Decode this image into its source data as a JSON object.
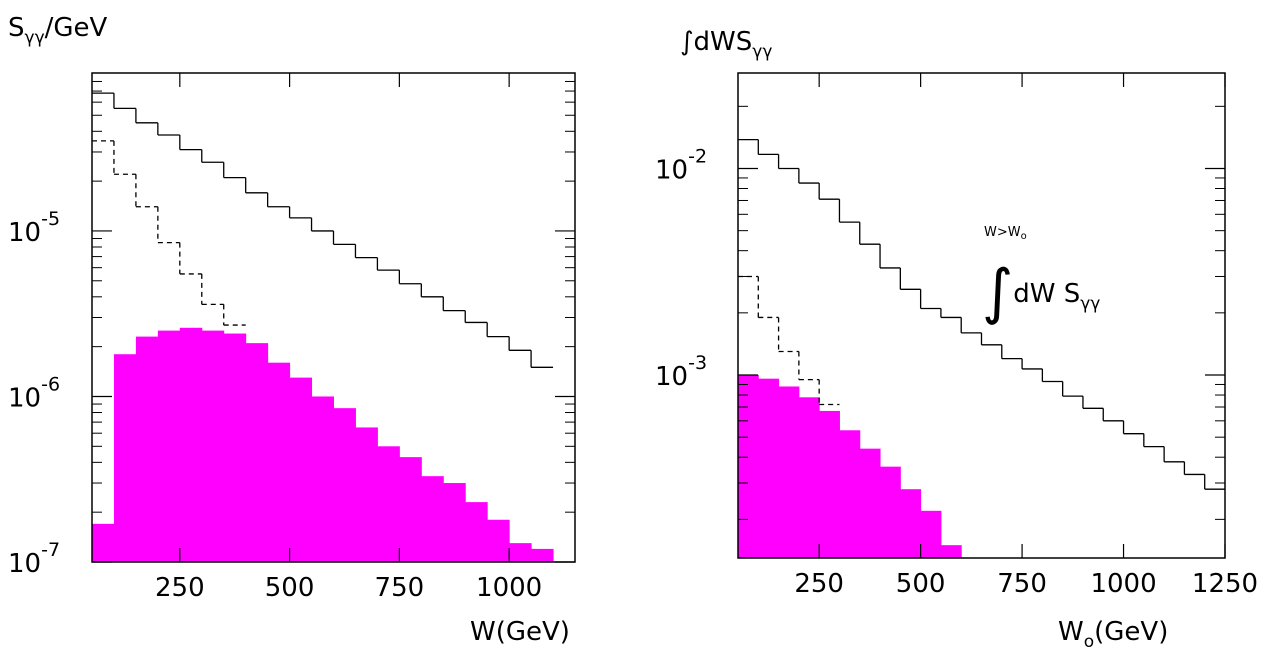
{
  "chart_data": [
    {
      "type": "histogram",
      "title": [
        "S",
        "γγ",
        "/GeV"
      ],
      "xlabel": [
        "W(GeV)"
      ],
      "xscale": "linear",
      "yscale": "log",
      "xlim": [
        50,
        1150
      ],
      "ylim": [
        1e-07,
        9e-05
      ],
      "xticks": [
        250,
        500,
        750,
        1000
      ],
      "yticks": [
        {
          "value": 1e-07,
          "label": "10",
          "exponent": "-7"
        },
        {
          "value": 1e-06,
          "label": "10",
          "exponent": "-6"
        },
        {
          "value": 1e-05,
          "label": "10",
          "exponent": "-5"
        }
      ],
      "yminor": [
        2e-07,
        3e-07,
        4e-07,
        5e-07,
        6e-07,
        7e-07,
        8e-07,
        9e-07,
        2e-06,
        3e-06,
        4e-06,
        5e-06,
        6e-06,
        7e-06,
        8e-06,
        9e-06,
        2e-05,
        3e-05,
        4e-05,
        5e-05,
        6e-05,
        7e-05,
        8e-05,
        9e-05
      ],
      "bins": [
        50,
        100,
        150,
        200,
        250,
        300,
        350,
        400,
        450,
        500,
        550,
        600,
        650,
        700,
        750,
        800,
        850,
        900,
        950,
        1000,
        1050,
        1100
      ],
      "series": [
        {
          "style": "filled",
          "color": "#ff00ff",
          "values": [
            1.7e-07,
            1.8e-06,
            2.3e-06,
            2.5e-06,
            2.6e-06,
            2.5e-06,
            2.4e-06,
            2.1e-06,
            1.6e-06,
            1.3e-06,
            1e-06,
            8.5e-07,
            6.5e-07,
            5e-07,
            4.3e-07,
            3.3e-07,
            3e-07,
            2.3e-07,
            1.8e-07,
            1.3e-07,
            1.2e-07
          ]
        },
        {
          "style": "dashed",
          "color": "#000000",
          "values": [
            3.5e-05,
            2.2e-05,
            1.4e-05,
            8.5e-06,
            5.5e-06,
            3.6e-06,
            2.7e-06,
            null,
            null,
            null,
            null,
            null,
            null,
            null,
            null,
            null,
            null,
            null,
            null,
            null,
            null
          ]
        },
        {
          "style": "solid",
          "color": "#000000",
          "values": [
            6.8e-05,
            5.5e-05,
            4.5e-05,
            3.8e-05,
            3.1e-05,
            2.6e-05,
            2.1e-05,
            1.7e-05,
            1.4e-05,
            1.2e-05,
            1e-05,
            8.3e-06,
            6.9e-06,
            5.8e-06,
            4.8e-06,
            4e-06,
            3.3e-06,
            2.8e-06,
            2.3e-06,
            1.9e-06,
            1.5e-06
          ]
        }
      ]
    },
    {
      "type": "histogram",
      "title": [
        "∫",
        "dWS",
        "γγ"
      ],
      "xlabel": [
        "W",
        "o",
        "(GeV)"
      ],
      "annotation": {
        "limit": [
          "W>W",
          "o"
        ],
        "text": [
          "∫",
          "dW S",
          "γγ"
        ]
      },
      "xscale": "linear",
      "yscale": "log",
      "xlim": [
        50,
        1250
      ],
      "ylim": [
        0.00013,
        0.029
      ],
      "xticks": [
        250,
        500,
        750,
        1000,
        1250
      ],
      "yticks": [
        {
          "value": 0.001,
          "label": "10",
          "exponent": "-3"
        },
        {
          "value": 0.01,
          "label": "10",
          "exponent": "-2"
        }
      ],
      "yminor": [
        0.0002,
        0.0003,
        0.0004,
        0.0005,
        0.0006,
        0.0007,
        0.0008,
        0.0009,
        0.002,
        0.003,
        0.004,
        0.005,
        0.006,
        0.007,
        0.008,
        0.009,
        0.02
      ],
      "bins": [
        50,
        100,
        150,
        200,
        250,
        300,
        350,
        400,
        450,
        500,
        550,
        600,
        650,
        700,
        750,
        800,
        850,
        900,
        950,
        1000,
        1050,
        1100,
        1150,
        1200,
        1250
      ],
      "series": [
        {
          "style": "filled",
          "color": "#ff00ff",
          "values": [
            0.001,
            0.00096,
            0.00088,
            0.00078,
            0.00067,
            0.00054,
            0.00044,
            0.00036,
            0.00028,
            0.00022,
            0.00015,
            null,
            null,
            null,
            null,
            null,
            null,
            null,
            null,
            null,
            null,
            null,
            null,
            null
          ]
        },
        {
          "style": "dashed",
          "color": "#000000",
          "values": [
            0.003,
            0.0019,
            0.0013,
            0.00095,
            0.00072,
            null,
            null,
            null,
            null,
            null,
            null,
            null,
            null,
            null,
            null,
            null,
            null,
            null,
            null,
            null,
            null,
            null,
            null,
            null
          ]
        },
        {
          "style": "solid",
          "color": "#000000",
          "values": [
            0.0138,
            0.0117,
            0.01,
            0.0085,
            0.0071,
            0.0055,
            0.0043,
            0.0033,
            0.0026,
            0.0021,
            0.0019,
            0.0016,
            0.0014,
            0.0012,
            0.00107,
            0.00093,
            0.00079,
            0.00069,
            0.0006,
            0.00052,
            0.00045,
            0.00038,
            0.00033,
            0.00028
          ]
        }
      ]
    }
  ]
}
